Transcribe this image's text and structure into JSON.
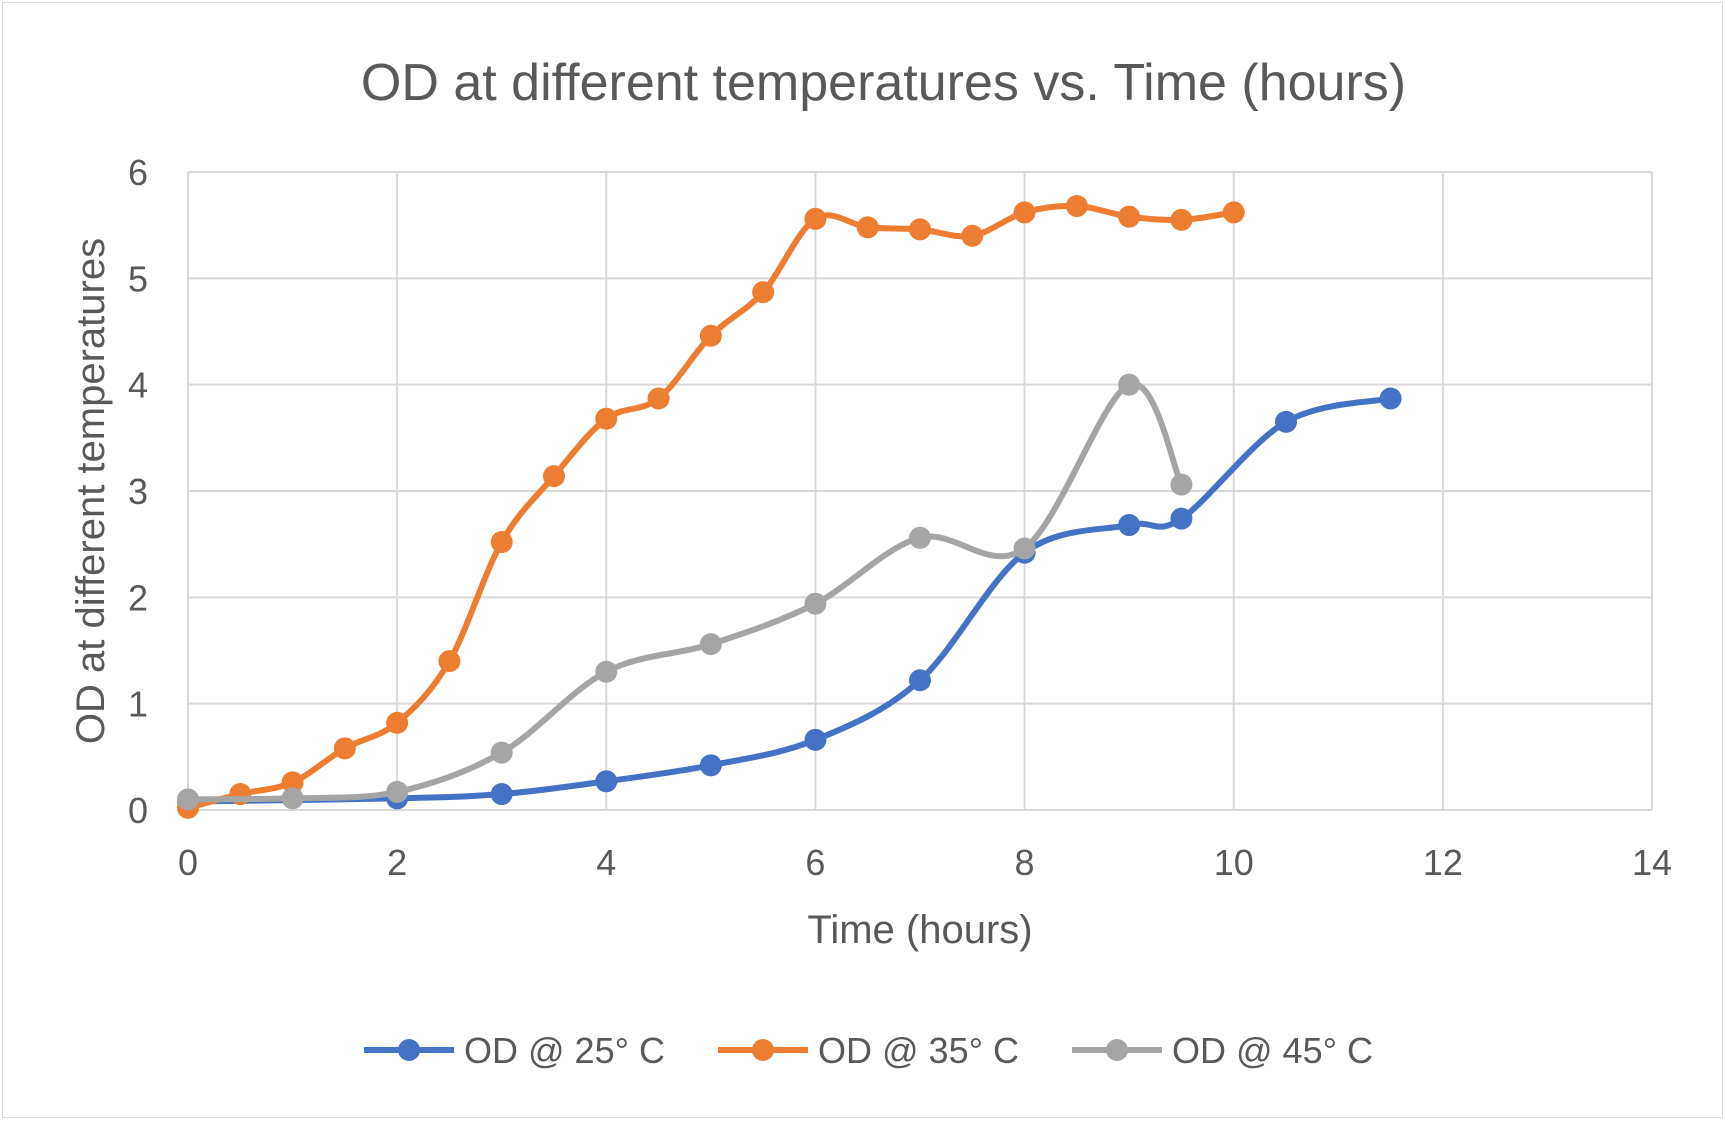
{
  "chart_data": {
    "type": "line",
    "title": "OD at different temperatures vs. Time (hours)",
    "xlabel": "Time (hours)",
    "ylabel": "OD at different temperatures",
    "xlim": [
      0,
      14
    ],
    "ylim": [
      0,
      6
    ],
    "xticks": [
      "0",
      "2",
      "4",
      "6",
      "8",
      "10",
      "12",
      "14"
    ],
    "yticks": [
      "0",
      "1",
      "2",
      "3",
      "4",
      "5",
      "6"
    ],
    "grid": true,
    "legend_position": "bottom",
    "series": [
      {
        "name": "OD @ 25° C",
        "color": "#4472C4",
        "x": [
          0,
          2,
          3,
          4,
          5,
          6,
          7,
          8,
          9,
          9.5,
          10.5,
          11.5
        ],
        "y": [
          0.08,
          0.11,
          0.15,
          0.27,
          0.42,
          0.66,
          1.22,
          2.42,
          2.68,
          2.74,
          3.65,
          3.87
        ]
      },
      {
        "name": "OD @ 35° C",
        "color": "#ED7D31",
        "x": [
          0,
          0.5,
          1,
          1.5,
          2,
          2.5,
          3,
          3.5,
          4,
          4.5,
          5,
          5.5,
          6,
          6.5,
          7,
          7.5,
          8,
          8.5,
          9,
          9.5,
          10
        ],
        "y": [
          0.02,
          0.15,
          0.26,
          0.58,
          0.82,
          1.4,
          2.52,
          3.14,
          3.68,
          3.87,
          4.46,
          4.87,
          5.56,
          5.48,
          5.46,
          5.4,
          5.62,
          5.68,
          5.58,
          5.55,
          5.62
        ]
      },
      {
        "name": "OD @  45° C",
        "color": "#A5A5A5",
        "x": [
          0,
          1,
          2,
          3,
          4,
          5,
          6,
          7,
          8,
          9,
          9.5
        ],
        "y": [
          0.1,
          0.11,
          0.17,
          0.54,
          1.3,
          1.56,
          1.94,
          2.56,
          2.46,
          4.0,
          3.06
        ]
      }
    ]
  }
}
